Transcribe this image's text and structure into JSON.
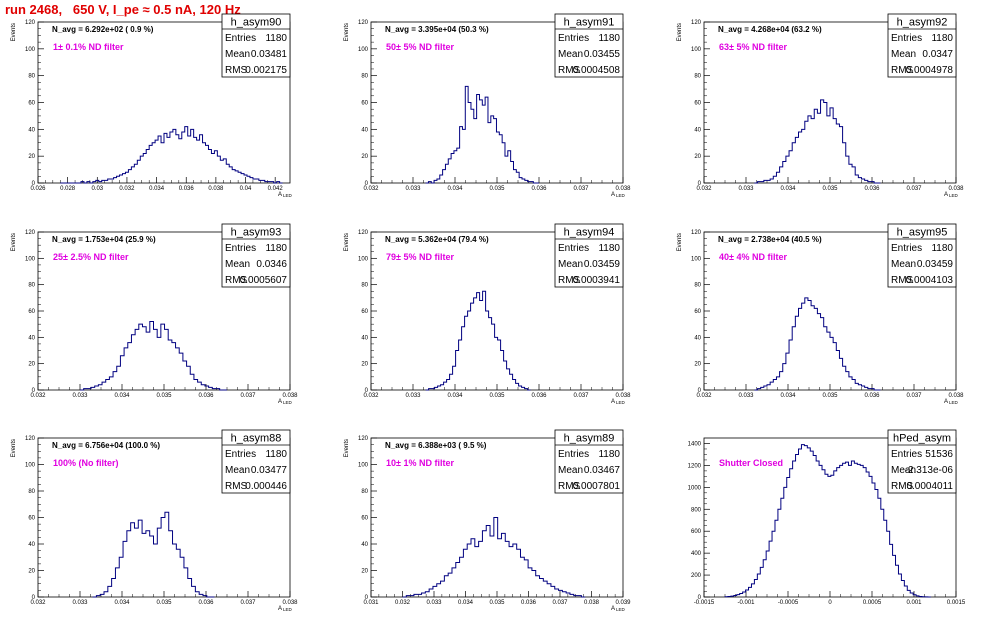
{
  "title": "run 2468,   650 V, I_pe ≈ 0.5 nA, 120 Hz",
  "chart_data": [
    {
      "type": "histogram",
      "name": "h_asym90",
      "navg": "N_avg = 6.292e+02 ( 0.9 %)",
      "filter": "1± 0.1% ND filter",
      "stats": {
        "entries": "1180",
        "mean": "0.03481",
        "rms": "0.002175"
      },
      "xlabel": "A",
      "xlabel_sub": "LED",
      "ylabel": "Events",
      "xlim": [
        0.026,
        0.043
      ],
      "ylim": [
        0,
        120
      ],
      "xticks": [
        0.026,
        0.028,
        0.03,
        0.032,
        0.034,
        0.036,
        0.038,
        0.04,
        0.042
      ],
      "xtick_labels": [
        "0.026",
        "0.028",
        "0.03",
        "0.032",
        "0.034",
        "0.036",
        "0.038",
        "0.04",
        "0.042"
      ],
      "yticks": [
        0,
        20,
        40,
        60,
        80,
        100,
        120
      ],
      "ytick_labels": [
        "0",
        "20",
        "40",
        "60",
        "80",
        "100",
        "120"
      ],
      "bin_range": [
        0.0275,
        0.0425
      ],
      "values": [
        0,
        0,
        0,
        0,
        0,
        0,
        0,
        1,
        0,
        1,
        0,
        1,
        2,
        1,
        2,
        2,
        3,
        3,
        4,
        5,
        6,
        7,
        8,
        10,
        12,
        14,
        17,
        20,
        22,
        25,
        28,
        30,
        32,
        35,
        30,
        37,
        34,
        38,
        40,
        36,
        33,
        38,
        42,
        35,
        40,
        34,
        32,
        36,
        30,
        28,
        25,
        22,
        24,
        20,
        17,
        18,
        14,
        12,
        10,
        9,
        8,
        7,
        6,
        5,
        4,
        3,
        3,
        2,
        2,
        1,
        1,
        1,
        0,
        1,
        0
      ]
    },
    {
      "type": "histogram",
      "name": "h_asym91",
      "navg": "N_avg = 3.395e+04 (50.3 %)",
      "filter": "50± 5% ND filter",
      "stats": {
        "entries": "1180",
        "mean": "0.03455",
        "rms": "0.0004508"
      },
      "xlabel": "A",
      "xlabel_sub": "LED",
      "ylabel": "Events",
      "xlim": [
        0.032,
        0.038
      ],
      "ylim": [
        0,
        120
      ],
      "xticks": [
        0.032,
        0.033,
        0.034,
        0.035,
        0.036,
        0.037,
        0.038
      ],
      "xtick_labels": [
        "0.032",
        "0.033",
        "0.034",
        "0.035",
        "0.036",
        "0.037",
        "0.038"
      ],
      "yticks": [
        0,
        20,
        40,
        60,
        80,
        100,
        120
      ],
      "ytick_labels": [
        "0",
        "20",
        "40",
        "60",
        "80",
        "100",
        "120"
      ],
      "bin_range": [
        0.0333,
        0.036
      ],
      "values": [
        0,
        1,
        0,
        2,
        3,
        6,
        10,
        14,
        18,
        22,
        24,
        26,
        42,
        40,
        72,
        60,
        55,
        48,
        66,
        62,
        58,
        64,
        45,
        50,
        48,
        38,
        36,
        30,
        20,
        24,
        16,
        10,
        8,
        4,
        3,
        2,
        1,
        1,
        0,
        0
      ]
    },
    {
      "type": "histogram",
      "name": "h_asym92",
      "navg": "N_avg = 4.268e+04 (63.2 %)",
      "filter": "63± 5% ND filter",
      "stats": {
        "entries": "1180",
        "mean": "0.0347",
        "rms": "0.0004978"
      },
      "xlabel": "A",
      "xlabel_sub": "LED",
      "ylabel": "Events",
      "xlim": [
        0.032,
        0.038
      ],
      "ylim": [
        0,
        120
      ],
      "xticks": [
        0.032,
        0.033,
        0.034,
        0.035,
        0.036,
        0.037,
        0.038
      ],
      "xtick_labels": [
        "0.032",
        "0.033",
        "0.034",
        "0.035",
        "0.036",
        "0.037",
        "0.038"
      ],
      "yticks": [
        0,
        20,
        40,
        60,
        80,
        100,
        120
      ],
      "ytick_labels": [
        "0",
        "20",
        "40",
        "60",
        "80",
        "100",
        "120"
      ],
      "bin_range": [
        0.0332,
        0.0362
      ],
      "values": [
        0,
        1,
        1,
        2,
        2,
        3,
        5,
        8,
        12,
        16,
        20,
        24,
        30,
        34,
        38,
        40,
        46,
        50,
        48,
        55,
        52,
        62,
        60,
        50,
        56,
        48,
        44,
        42,
        30,
        20,
        14,
        12,
        6,
        4,
        3,
        2,
        1,
        1,
        0,
        0
      ]
    },
    {
      "type": "histogram",
      "name": "h_asym93",
      "navg": "N_avg = 1.753e+04 (25.9 %)",
      "filter": "25± 2.5% ND filter",
      "stats": {
        "entries": "1180",
        "mean": "0.0346",
        "rms": "0.0005607"
      },
      "xlabel": "A",
      "xlabel_sub": "LED",
      "ylabel": "Events",
      "xlim": [
        0.032,
        0.038
      ],
      "ylim": [
        0,
        120
      ],
      "xticks": [
        0.032,
        0.033,
        0.034,
        0.035,
        0.036,
        0.037,
        0.038
      ],
      "xtick_labels": [
        "0.032",
        "0.033",
        "0.034",
        "0.035",
        "0.036",
        "0.037",
        "0.038"
      ],
      "yticks": [
        0,
        20,
        40,
        60,
        80,
        100,
        120
      ],
      "ytick_labels": [
        "0",
        "20",
        "40",
        "60",
        "80",
        "100",
        "120"
      ],
      "bin_range": [
        0.033,
        0.0365
      ],
      "values": [
        0,
        1,
        1,
        2,
        3,
        4,
        6,
        8,
        10,
        14,
        18,
        26,
        32,
        36,
        42,
        46,
        50,
        48,
        44,
        52,
        46,
        40,
        50,
        46,
        38,
        36,
        32,
        28,
        22,
        18,
        12,
        8,
        6,
        4,
        3,
        2,
        1,
        1,
        0,
        0
      ]
    },
    {
      "type": "histogram",
      "name": "h_asym94",
      "navg": "N_avg = 5.362e+04 (79.4 %)",
      "filter": "79± 5% ND filter",
      "stats": {
        "entries": "1180",
        "mean": "0.03459",
        "rms": "0.0003941"
      },
      "xlabel": "A",
      "xlabel_sub": "LED",
      "ylabel": "Events",
      "xlim": [
        0.032,
        0.038
      ],
      "ylim": [
        0,
        120
      ],
      "xticks": [
        0.032,
        0.033,
        0.034,
        0.035,
        0.036,
        0.037,
        0.038
      ],
      "xtick_labels": [
        "0.032",
        "0.033",
        "0.034",
        "0.035",
        "0.036",
        "0.037",
        "0.038"
      ],
      "yticks": [
        0,
        20,
        40,
        60,
        80,
        100,
        120
      ],
      "ytick_labels": [
        "0",
        "20",
        "40",
        "60",
        "80",
        "100",
        "120"
      ],
      "bin_range": [
        0.0333,
        0.0358
      ],
      "values": [
        0,
        1,
        1,
        2,
        3,
        4,
        6,
        8,
        12,
        18,
        30,
        38,
        48,
        56,
        60,
        66,
        70,
        74,
        68,
        75,
        60,
        55,
        50,
        40,
        38,
        30,
        22,
        16,
        12,
        8,
        5,
        3,
        2,
        1,
        0
      ]
    },
    {
      "type": "histogram",
      "name": "h_asym95",
      "navg": "N_avg = 2.738e+04 (40.5 %)",
      "filter": "40± 4% ND filter",
      "stats": {
        "entries": "1180",
        "mean": "0.03459",
        "rms": "0.0004103"
      },
      "xlabel": "A",
      "xlabel_sub": "LED",
      "ylabel": "Events",
      "xlim": [
        0.032,
        0.038
      ],
      "ylim": [
        0,
        120
      ],
      "xticks": [
        0.032,
        0.033,
        0.034,
        0.035,
        0.036,
        0.037,
        0.038
      ],
      "xtick_labels": [
        "0.032",
        "0.033",
        "0.034",
        "0.035",
        "0.036",
        "0.037",
        "0.038"
      ],
      "yticks": [
        0,
        20,
        40,
        60,
        80,
        100,
        120
      ],
      "ytick_labels": [
        "0",
        "20",
        "40",
        "60",
        "80",
        "100",
        "120"
      ],
      "bin_range": [
        0.0332,
        0.0362
      ],
      "values": [
        0,
        1,
        2,
        3,
        4,
        6,
        8,
        10,
        14,
        20,
        28,
        38,
        48,
        56,
        62,
        66,
        70,
        68,
        64,
        62,
        58,
        55,
        48,
        44,
        40,
        36,
        30,
        24,
        18,
        14,
        10,
        8,
        5,
        4,
        3,
        2,
        1,
        1,
        0,
        0
      ]
    },
    {
      "type": "histogram",
      "name": "h_asym88",
      "navg": "N_avg = 6.756e+04 (100.0 %)",
      "filter": "100% (No filter)",
      "stats": {
        "entries": "1180",
        "mean": "0.03477",
        "rms": "0.000446"
      },
      "xlabel": "A",
      "xlabel_sub": "LED",
      "ylabel": "Events",
      "xlim": [
        0.032,
        0.038
      ],
      "ylim": [
        0,
        120
      ],
      "xticks": [
        0.032,
        0.033,
        0.034,
        0.035,
        0.036,
        0.037,
        0.038
      ],
      "xtick_labels": [
        "0.032",
        "0.033",
        "0.034",
        "0.035",
        "0.036",
        "0.037",
        "0.038"
      ],
      "yticks": [
        0,
        20,
        40,
        60,
        80,
        100,
        120
      ],
      "ytick_labels": [
        "0",
        "20",
        "40",
        "60",
        "80",
        "100",
        "120"
      ],
      "bin_range": [
        0.0333,
        0.0362
      ],
      "values": [
        0,
        1,
        2,
        4,
        8,
        14,
        22,
        30,
        42,
        50,
        56,
        52,
        58,
        48,
        50,
        46,
        40,
        52,
        60,
        64,
        50,
        40,
        36,
        30,
        22,
        14,
        8,
        4,
        2,
        1,
        0,
        0
      ]
    },
    {
      "type": "histogram",
      "name": "h_asym89",
      "navg": "N_avg = 6.388e+03 ( 9.5 %)",
      "filter": "10± 1% ND filter",
      "stats": {
        "entries": "1180",
        "mean": "0.03467",
        "rms": "0.0007801"
      },
      "xlabel": "A",
      "xlabel_sub": "LED",
      "ylabel": "Events",
      "xlim": [
        0.031,
        0.039
      ],
      "ylim": [
        0,
        120
      ],
      "xticks": [
        0.031,
        0.032,
        0.033,
        0.034,
        0.035,
        0.036,
        0.037,
        0.038,
        0.039
      ],
      "xtick_labels": [
        "0.031",
        "0.032",
        "0.033",
        "0.034",
        "0.035",
        "0.036",
        "0.037",
        "0.038",
        "0.039"
      ],
      "yticks": [
        0,
        20,
        40,
        60,
        80,
        100,
        120
      ],
      "ytick_labels": [
        "0",
        "20",
        "40",
        "60",
        "80",
        "100",
        "120"
      ],
      "bin_range": [
        0.032,
        0.0378
      ],
      "values": [
        0,
        1,
        1,
        2,
        2,
        3,
        4,
        6,
        8,
        10,
        12,
        16,
        18,
        22,
        26,
        30,
        36,
        40,
        44,
        38,
        42,
        50,
        54,
        46,
        60,
        44,
        48,
        42,
        38,
        40,
        36,
        30,
        28,
        22,
        20,
        16,
        14,
        12,
        10,
        8,
        6,
        5,
        4,
        3,
        2,
        1,
        1,
        0
      ]
    },
    {
      "type": "histogram",
      "name": "hPed_asym",
      "navg": "",
      "filter": "Shutter Closed",
      "stats": {
        "entries": "51536",
        "mean": "-2.313e-06",
        "rms": "0.0004011"
      },
      "xlabel": "",
      "xlabel_sub": "",
      "ylabel": "",
      "xlim": [
        -0.0015,
        0.0015
      ],
      "ylim": [
        0,
        1450
      ],
      "xticks": [
        -0.0015,
        -0.001,
        -0.0005,
        0,
        0.0005,
        0.001,
        0.0015
      ],
      "xtick_labels": [
        "-0.0015",
        "-0.001",
        "-0.0005",
        "0",
        "0.0005",
        "0.001",
        "0.0015"
      ],
      "yticks": [
        0,
        200,
        400,
        600,
        800,
        1000,
        1200,
        1400
      ],
      "ytick_labels": [
        "0",
        "200",
        "400",
        "600",
        "800",
        "1000",
        "1200",
        "1400"
      ],
      "bin_range": [
        -0.00125,
        0.0012
      ],
      "values": [
        2,
        4,
        8,
        14,
        22,
        32,
        46,
        64,
        88,
        120,
        160,
        210,
        270,
        340,
        420,
        510,
        600,
        700,
        800,
        900,
        1000,
        1090,
        1170,
        1240,
        1300,
        1350,
        1390,
        1380,
        1360,
        1330,
        1290,
        1240,
        1200,
        1160,
        1120,
        1100,
        1110,
        1150,
        1180,
        1200,
        1220,
        1230,
        1200,
        1240,
        1220,
        1210,
        1200,
        1180,
        1140,
        1100,
        1040,
        980,
        900,
        800,
        700,
        600,
        480,
        380,
        290,
        210,
        150,
        100,
        60,
        36,
        20,
        10,
        5,
        2,
        1,
        0
      ]
    }
  ]
}
